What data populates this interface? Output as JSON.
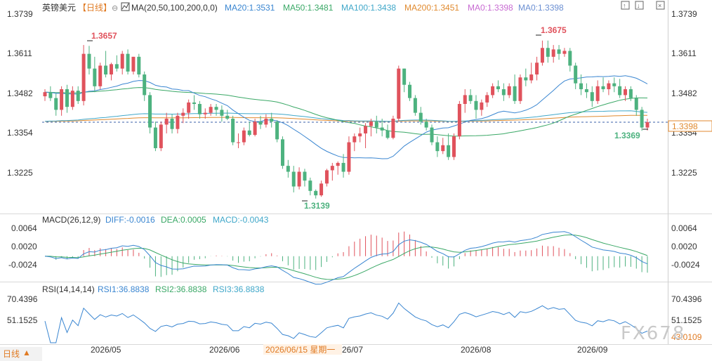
{
  "header": {
    "symbol": "英镑美元",
    "period": "【日线】",
    "circle_icon": "⊖",
    "ma_label": "MA(20,50,100,200,0,0)",
    "ma_values": [
      {
        "text": "MA20:1.3531",
        "color": "#3a86d1"
      },
      {
        "text": "MA50:1.3481",
        "color": "#3aa866"
      },
      {
        "text": "MA100:1.3438",
        "color": "#3fa7c9"
      },
      {
        "text": "MA200:1.3451",
        "color": "#e08a2f"
      },
      {
        "text": "MA0:1.3398",
        "color": "#c86bd2"
      },
      {
        "text": "MA0:1.3398",
        "color": "#6b8fd2"
      }
    ]
  },
  "annotations": {
    "high1": "1.3657",
    "high2": "1.3675",
    "low1": "1.3139",
    "low2": "1.3369",
    "current_price": "1.3398"
  },
  "macd": {
    "label": "MACD(26,12,9)",
    "diff": "DIFF:-0.0016",
    "dea": "DEA:0.0005",
    "macd": "MACD:-0.0043",
    "ticks": [
      "0.0064",
      "0.0020",
      "-0.0024"
    ]
  },
  "rsi": {
    "label": "RSI(14,14,14)",
    "rsi1": "RSI1:36.8838",
    "rsi2": "RSI2:36.8838",
    "rsi3": "RSI3:36.8838",
    "ticks": [
      "70.4396",
      "51.1525"
    ],
    "partial_tick": "43.0109"
  },
  "x_axis": {
    "labels": [
      "2026/05",
      "2026/06",
      "26/07",
      "2026/08",
      "2026/09"
    ],
    "cursor_label": "2026/06/15 星期一"
  },
  "status_bar": {
    "period_button": "日线",
    "arrow": "▲"
  },
  "watermark": "FX678",
  "colors": {
    "up": "#e0525c",
    "down": "#4db27f",
    "ma20": "#3a86d1",
    "ma50": "#3aa866",
    "ma100": "#3fa7c9",
    "ma200": "#e08a2f",
    "diff": "#3a86d1",
    "dea": "#3aa866",
    "rsi": "#3a86d1"
  },
  "chart_data": {
    "type": "candlestick",
    "price_ticks": [
      "1.3739",
      "1.3611",
      "1.3482",
      "1.3354",
      "1.3225"
    ],
    "ylim": [
      1.3105,
      1.3765
    ],
    "candles": [
      [
        1.3486,
        1.351,
        1.347,
        1.35
      ],
      [
        1.35,
        1.352,
        1.347,
        1.348
      ],
      [
        1.348,
        1.3495,
        1.342,
        1.344
      ],
      [
        1.344,
        1.352,
        1.342,
        1.351
      ],
      [
        1.351,
        1.3525,
        1.343,
        1.345
      ],
      [
        1.345,
        1.352,
        1.344,
        1.3505
      ],
      [
        1.3505,
        1.352,
        1.346,
        1.347
      ],
      [
        1.347,
        1.366,
        1.3455,
        1.363
      ],
      [
        1.363,
        1.3657,
        1.356,
        1.358
      ],
      [
        1.358,
        1.362,
        1.35,
        1.352
      ],
      [
        1.352,
        1.36,
        1.351,
        1.359
      ],
      [
        1.359,
        1.364,
        1.355,
        1.356
      ],
      [
        1.356,
        1.36,
        1.354,
        1.3595
      ],
      [
        1.3595,
        1.3625,
        1.357,
        1.358
      ],
      [
        1.358,
        1.364,
        1.356,
        1.363
      ],
      [
        1.363,
        1.3645,
        1.356,
        1.357
      ],
      [
        1.357,
        1.362,
        1.356,
        1.362
      ],
      [
        1.362,
        1.363,
        1.355,
        1.356
      ],
      [
        1.356,
        1.357,
        1.347,
        1.349
      ],
      [
        1.349,
        1.35,
        1.336,
        1.338
      ],
      [
        1.338,
        1.34,
        1.33,
        1.331
      ],
      [
        1.331,
        1.34,
        1.33,
        1.339
      ],
      [
        1.339,
        1.343,
        1.336,
        1.341
      ],
      [
        1.341,
        1.3425,
        1.336,
        1.3375
      ],
      [
        1.3375,
        1.343,
        1.336,
        1.342
      ],
      [
        1.342,
        1.3445,
        1.3395,
        1.343
      ],
      [
        1.343,
        1.3475,
        1.341,
        1.3465
      ],
      [
        1.3465,
        1.349,
        1.344,
        1.346
      ],
      [
        1.346,
        1.347,
        1.341,
        1.3425
      ],
      [
        1.3425,
        1.3445,
        1.341,
        1.343
      ],
      [
        1.343,
        1.346,
        1.342,
        1.345
      ],
      [
        1.345,
        1.346,
        1.342,
        1.344
      ],
      [
        1.344,
        1.3455,
        1.34,
        1.342
      ],
      [
        1.342,
        1.344,
        1.3405,
        1.341
      ],
      [
        1.341,
        1.342,
        1.332,
        1.333
      ],
      [
        1.333,
        1.336,
        1.331,
        1.333
      ],
      [
        1.333,
        1.338,
        1.332,
        1.337
      ],
      [
        1.337,
        1.34,
        1.335,
        1.3355
      ],
      [
        1.3355,
        1.341,
        1.335,
        1.34
      ],
      [
        1.34,
        1.342,
        1.3375,
        1.339
      ],
      [
        1.339,
        1.3425,
        1.338,
        1.341
      ],
      [
        1.341,
        1.343,
        1.338,
        1.34
      ],
      [
        1.34,
        1.3405,
        1.333,
        1.334
      ],
      [
        1.334,
        1.335,
        1.324,
        1.325
      ],
      [
        1.325,
        1.327,
        1.321,
        1.323
      ],
      [
        1.323,
        1.325,
        1.316,
        1.318
      ],
      [
        1.318,
        1.3245,
        1.317,
        1.323
      ],
      [
        1.323,
        1.324,
        1.318,
        1.32
      ],
      [
        1.32,
        1.321,
        1.315,
        1.3165
      ],
      [
        1.3165,
        1.317,
        1.3139,
        1.315
      ],
      [
        1.315,
        1.32,
        1.3145,
        1.319
      ],
      [
        1.319,
        1.324,
        1.318,
        1.3235
      ],
      [
        1.3235,
        1.326,
        1.32,
        1.325
      ],
      [
        1.325,
        1.3265,
        1.322,
        1.326
      ],
      [
        1.326,
        1.329,
        1.321,
        1.323
      ],
      [
        1.323,
        1.335,
        1.322,
        1.333
      ],
      [
        1.333,
        1.336,
        1.33,
        1.335
      ],
      [
        1.335,
        1.338,
        1.333,
        1.336
      ],
      [
        1.336,
        1.3395,
        1.331,
        1.3385
      ],
      [
        1.3385,
        1.341,
        1.335,
        1.34
      ],
      [
        1.34,
        1.342,
        1.336,
        1.338
      ],
      [
        1.338,
        1.341,
        1.335,
        1.337
      ],
      [
        1.337,
        1.339,
        1.334,
        1.3345
      ],
      [
        1.3345,
        1.342,
        1.334,
        1.341
      ],
      [
        1.341,
        1.359,
        1.34,
        1.358
      ],
      [
        1.358,
        1.358,
        1.35,
        1.3525
      ],
      [
        1.3525,
        1.3535,
        1.347,
        1.348
      ],
      [
        1.348,
        1.349,
        1.342,
        1.343
      ],
      [
        1.343,
        1.345,
        1.339,
        1.34
      ],
      [
        1.34,
        1.341,
        1.337,
        1.338
      ],
      [
        1.338,
        1.339,
        1.332,
        1.333
      ],
      [
        1.333,
        1.335,
        1.328,
        1.33
      ],
      [
        1.33,
        1.3345,
        1.329,
        1.332
      ],
      [
        1.332,
        1.336,
        1.327,
        1.328
      ],
      [
        1.328,
        1.336,
        1.327,
        1.335
      ],
      [
        1.335,
        1.347,
        1.334,
        1.346
      ],
      [
        1.346,
        1.351,
        1.343,
        1.349
      ],
      [
        1.349,
        1.351,
        1.346,
        1.347
      ],
      [
        1.347,
        1.349,
        1.341,
        1.344
      ],
      [
        1.344,
        1.3475,
        1.342,
        1.3465
      ],
      [
        1.3465,
        1.35,
        1.345,
        1.349
      ],
      [
        1.349,
        1.353,
        1.348,
        1.352
      ],
      [
        1.352,
        1.354,
        1.35,
        1.351
      ],
      [
        1.351,
        1.353,
        1.347,
        1.349
      ],
      [
        1.349,
        1.353,
        1.348,
        1.352
      ],
      [
        1.352,
        1.356,
        1.346,
        1.347
      ],
      [
        1.347,
        1.356,
        1.346,
        1.355
      ],
      [
        1.355,
        1.358,
        1.352,
        1.354
      ],
      [
        1.354,
        1.36,
        1.353,
        1.356
      ],
      [
        1.356,
        1.362,
        1.354,
        1.36
      ],
      [
        1.36,
        1.3675,
        1.359,
        1.365
      ],
      [
        1.365,
        1.3675,
        1.36,
        1.362
      ],
      [
        1.362,
        1.366,
        1.36,
        1.3645
      ],
      [
        1.3645,
        1.366,
        1.361,
        1.363
      ],
      [
        1.363,
        1.365,
        1.362,
        1.364
      ],
      [
        1.364,
        1.365,
        1.357,
        1.359
      ],
      [
        1.359,
        1.36,
        1.351,
        1.353
      ],
      [
        1.353,
        1.356,
        1.349,
        1.351
      ],
      [
        1.351,
        1.353,
        1.348,
        1.35
      ],
      [
        1.35,
        1.352,
        1.345,
        1.347
      ],
      [
        1.347,
        1.354,
        1.346,
        1.352
      ],
      [
        1.352,
        1.355,
        1.35,
        1.351
      ],
      [
        1.351,
        1.354,
        1.349,
        1.353
      ],
      [
        1.353,
        1.355,
        1.35,
        1.352
      ],
      [
        1.352,
        1.3545,
        1.348,
        1.349
      ],
      [
        1.349,
        1.352,
        1.347,
        1.351
      ],
      [
        1.351,
        1.352,
        1.347,
        1.348
      ],
      [
        1.348,
        1.349,
        1.342,
        1.344
      ],
      [
        1.344,
        1.345,
        1.3369,
        1.338
      ],
      [
        1.338,
        1.341,
        1.337,
        1.3398
      ]
    ]
  }
}
